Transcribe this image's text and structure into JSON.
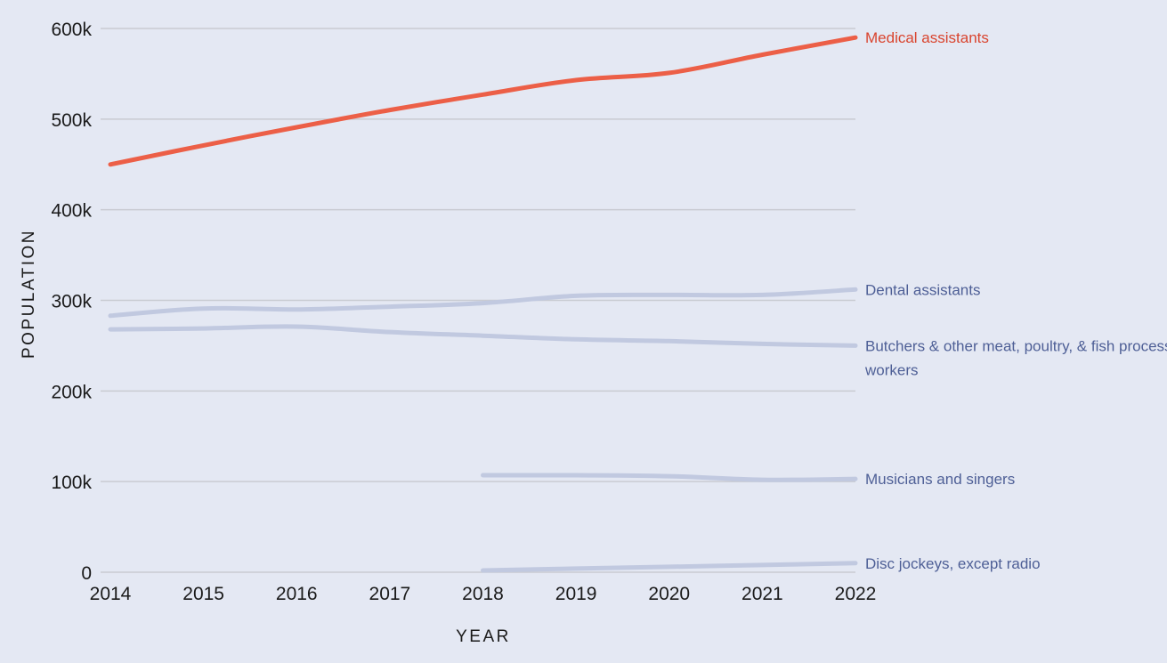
{
  "chart_data": {
    "type": "line",
    "title": "",
    "xlabel": "YEAR",
    "ylabel": "POPULATION",
    "x": [
      2014,
      2015,
      2016,
      2017,
      2018,
      2019,
      2020,
      2021,
      2022
    ],
    "xlim": [
      2014,
      2022
    ],
    "ylim": [
      0,
      600000
    ],
    "y_ticks": [
      0,
      100000,
      200000,
      300000,
      400000,
      500000,
      600000
    ],
    "y_tick_labels": [
      "0",
      "100k",
      "200k",
      "300k",
      "400k",
      "500k",
      "600k"
    ],
    "x_tick_labels": [
      "2014",
      "2015",
      "2016",
      "2017",
      "2018",
      "2019",
      "2020",
      "2021",
      "2022"
    ],
    "grid": "horizontal",
    "legend": "direct labels at line ends",
    "series": [
      {
        "name": "Medical assistants",
        "highlight": true,
        "color": "#ec5f47",
        "label_color": "#d9442e",
        "values": [
          450000,
          471000,
          491000,
          510000,
          527000,
          543000,
          551000,
          571000,
          590000
        ]
      },
      {
        "name": "Dental assistants",
        "highlight": false,
        "color": "#c1c9e0",
        "label_color": "#4e5f96",
        "values": [
          283000,
          291000,
          290000,
          293000,
          297000,
          305000,
          306000,
          306000,
          312000
        ]
      },
      {
        "name": "Butchers & other meat, poultry, & fish processing workers",
        "label_lines": [
          "Butchers & other meat, poultry, & fish processing",
          "workers"
        ],
        "highlight": false,
        "color": "#c1c9e0",
        "label_color": "#4e5f96",
        "values": [
          268000,
          269000,
          271000,
          265000,
          261000,
          257000,
          255000,
          252000,
          250000
        ]
      },
      {
        "name": "Musicians and singers",
        "highlight": false,
        "color": "#c1c9e0",
        "label_color": "#4e5f96",
        "values": [
          null,
          null,
          null,
          null,
          107000,
          107000,
          106000,
          102000,
          103000
        ]
      },
      {
        "name": "Disc jockeys, except radio",
        "highlight": false,
        "color": "#c1c9e0",
        "label_color": "#4e5f96",
        "values": [
          null,
          null,
          null,
          null,
          2000,
          4000,
          6000,
          8000,
          10000
        ]
      }
    ]
  }
}
